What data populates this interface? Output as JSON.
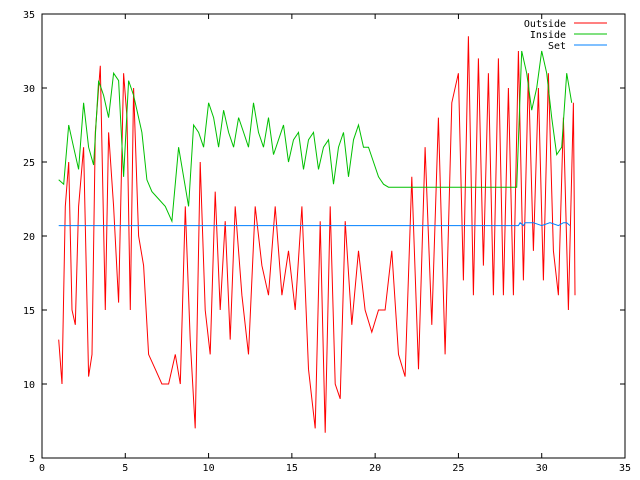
{
  "chart_data": {
    "type": "line",
    "title": "",
    "xlabel": "",
    "ylabel": "",
    "xlim": [
      0,
      35
    ],
    "ylim": [
      5,
      35
    ],
    "x_ticks": [
      0,
      5,
      10,
      15,
      20,
      25,
      30,
      35
    ],
    "y_ticks": [
      5,
      10,
      15,
      20,
      25,
      30,
      35
    ],
    "grid": false,
    "legend_position": "top-right",
    "series": [
      {
        "name": "Outside",
        "color": "#ff0000",
        "x": [
          1.0,
          1.2,
          1.4,
          1.6,
          1.8,
          2.0,
          2.2,
          2.5,
          2.8,
          3.0,
          3.2,
          3.5,
          3.8,
          4.0,
          4.3,
          4.6,
          4.9,
          5.1,
          5.3,
          5.5,
          5.8,
          6.1,
          6.4,
          6.8,
          7.2,
          7.6,
          8.0,
          8.3,
          8.6,
          8.9,
          9.2,
          9.5,
          9.8,
          10.1,
          10.4,
          10.7,
          11.0,
          11.3,
          11.6,
          12.0,
          12.4,
          12.8,
          13.2,
          13.6,
          14.0,
          14.4,
          14.8,
          15.2,
          15.6,
          16.0,
          16.4,
          16.7,
          17.0,
          17.3,
          17.6,
          17.9,
          18.2,
          18.6,
          19.0,
          19.4,
          19.8,
          20.2,
          20.6,
          21.0,
          21.4,
          21.8,
          22.2,
          22.6,
          23.0,
          23.4,
          23.8,
          24.2,
          24.6,
          25.0,
          25.3,
          25.6,
          25.9,
          26.2,
          26.5,
          26.8,
          27.1,
          27.4,
          27.7,
          28.0,
          28.3,
          28.6,
          28.9,
          29.2,
          29.5,
          29.8,
          30.1,
          30.4,
          30.7,
          31.0,
          31.3,
          31.6,
          31.9,
          32.0
        ],
        "values": [
          13.0,
          10.0,
          22.0,
          25.0,
          15.0,
          14.0,
          22.0,
          26.0,
          10.5,
          12.0,
          27.0,
          31.5,
          15.0,
          27.0,
          22.0,
          15.5,
          31.0,
          28.0,
          15.0,
          30.0,
          20.0,
          18.0,
          12.0,
          11.0,
          10.0,
          10.0,
          12.0,
          10.0,
          22.0,
          13.0,
          7.0,
          25.0,
          15.0,
          12.0,
          23.0,
          15.0,
          21.0,
          13.0,
          22.0,
          16.0,
          12.0,
          22.0,
          18.0,
          16.0,
          22.0,
          16.0,
          19.0,
          15.0,
          22.0,
          11.0,
          7.0,
          21.0,
          6.7,
          22.0,
          10.0,
          9.0,
          21.0,
          14.0,
          19.0,
          15.0,
          13.5,
          15.0,
          15.0,
          19.0,
          12.0,
          10.5,
          24.0,
          11.0,
          26.0,
          14.0,
          28.0,
          12.0,
          29.0,
          31.0,
          17.0,
          33.5,
          16.0,
          32.0,
          18.0,
          31.0,
          16.0,
          32.0,
          16.0,
          30.0,
          16.0,
          32.5,
          17.0,
          31.0,
          19.0,
          30.0,
          17.0,
          31.0,
          19.0,
          16.0,
          28.0,
          15.0,
          29.0,
          16.0
        ]
      },
      {
        "name": "Inside",
        "color": "#00c000",
        "x": [
          1.0,
          1.3,
          1.6,
          1.9,
          2.2,
          2.5,
          2.8,
          3.1,
          3.4,
          3.7,
          4.0,
          4.3,
          4.6,
          4.9,
          5.2,
          5.5,
          5.8,
          6.0,
          6.3,
          6.6,
          7.0,
          7.4,
          7.8,
          8.2,
          8.5,
          8.8,
          9.1,
          9.4,
          9.7,
          10.0,
          10.3,
          10.6,
          10.9,
          11.2,
          11.5,
          11.8,
          12.1,
          12.4,
          12.7,
          13.0,
          13.3,
          13.6,
          13.9,
          14.2,
          14.5,
          14.8,
          15.1,
          15.4,
          15.7,
          16.0,
          16.3,
          16.6,
          16.9,
          17.2,
          17.5,
          17.8,
          18.1,
          18.4,
          18.7,
          19.0,
          19.3,
          19.6,
          19.9,
          20.2,
          20.5,
          20.8,
          21.0,
          24.0,
          27.0,
          28.5,
          28.8,
          29.1,
          29.4,
          29.7,
          30.0,
          30.3,
          30.6,
          30.9,
          31.2,
          31.5,
          31.8
        ],
        "values": [
          23.8,
          23.5,
          27.5,
          26.0,
          24.5,
          29.0,
          26.0,
          24.8,
          30.5,
          29.5,
          28.0,
          31.0,
          30.5,
          24.0,
          30.5,
          29.5,
          28.0,
          27.0,
          23.8,
          23.0,
          22.5,
          22.0,
          21.0,
          26.0,
          24.0,
          22.0,
          27.5,
          27.0,
          26.0,
          29.0,
          28.0,
          26.0,
          28.5,
          27.0,
          26.0,
          28.0,
          27.0,
          26.0,
          29.0,
          27.0,
          26.0,
          28.0,
          25.5,
          26.5,
          27.5,
          25.0,
          26.5,
          27.0,
          24.5,
          26.5,
          27.0,
          24.5,
          26.0,
          26.5,
          23.5,
          26.0,
          27.0,
          24.0,
          26.5,
          27.5,
          26.0,
          26.0,
          25.0,
          24.0,
          23.5,
          23.3,
          23.3,
          23.3,
          23.3,
          23.3,
          32.5,
          31.0,
          28.5,
          30.0,
          32.5,
          31.0,
          28.0,
          25.5,
          26.0,
          31.0,
          29.0
        ]
      },
      {
        "name": "Set",
        "color": "#0080ff",
        "x": [
          1.0,
          28.6,
          28.7,
          28.9,
          29.0,
          29.5,
          30.0,
          30.5,
          31.0,
          31.3,
          31.5,
          31.7
        ],
        "values": [
          20.7,
          20.7,
          20.9,
          20.7,
          20.9,
          20.9,
          20.7,
          20.9,
          20.7,
          20.9,
          20.9,
          20.7
        ]
      }
    ]
  }
}
